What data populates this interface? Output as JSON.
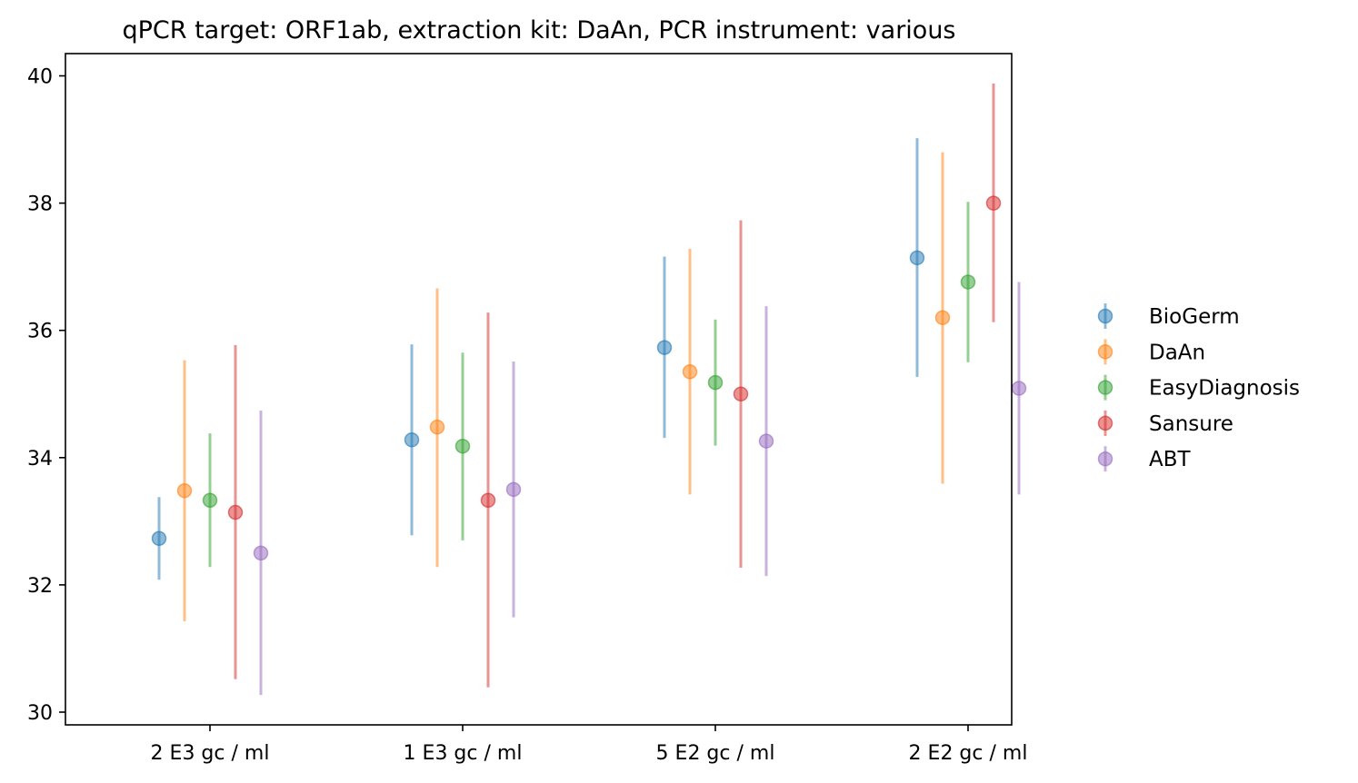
{
  "chart_data": {
    "type": "scatter",
    "title": "qPCR target: ORF1ab, extraction kit: DaAn, PCR instrument: various",
    "xlabel": "",
    "ylabel": "",
    "categories": [
      "2 E3 gc / ml",
      "1 E3 gc / ml",
      "5 E2 gc / ml",
      "2 E2 gc / ml"
    ],
    "ylim": [
      29.8,
      40.35
    ],
    "yticks": [
      30,
      32,
      34,
      36,
      38,
      40
    ],
    "grid": false,
    "legend_position": "right-outside",
    "series": [
      {
        "name": "BioGerm",
        "color": "#1f77b4",
        "values": [
          32.73,
          34.28,
          35.73,
          37.14
        ],
        "low": [
          32.08,
          32.78,
          34.31,
          35.27
        ],
        "high": [
          33.38,
          35.78,
          37.16,
          39.02
        ]
      },
      {
        "name": "DaAn",
        "color": "#ff7f0e",
        "values": [
          33.48,
          34.48,
          35.35,
          36.2
        ],
        "low": [
          31.43,
          32.28,
          33.42,
          33.59
        ],
        "high": [
          35.53,
          36.66,
          37.28,
          38.8
        ]
      },
      {
        "name": "EasyDiagnosis",
        "color": "#2ca02c",
        "values": [
          33.33,
          34.18,
          35.18,
          36.76
        ],
        "low": [
          32.28,
          32.7,
          34.19,
          35.5
        ],
        "high": [
          34.38,
          35.65,
          36.17,
          38.02
        ]
      },
      {
        "name": "Sansure",
        "color": "#d62728",
        "values": [
          33.14,
          33.33,
          35.0,
          38.0
        ],
        "low": [
          30.52,
          30.39,
          32.27,
          36.13
        ],
        "high": [
          35.77,
          36.28,
          37.73,
          39.88
        ]
      },
      {
        "name": "ABT",
        "color": "#9467bd",
        "values": [
          32.5,
          33.5,
          34.26,
          35.09
        ],
        "low": [
          30.27,
          31.49,
          32.14,
          33.42
        ],
        "high": [
          34.74,
          35.51,
          36.38,
          36.76
        ]
      }
    ]
  }
}
